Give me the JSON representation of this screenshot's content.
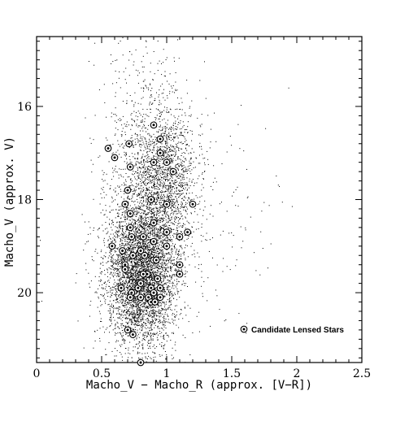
{
  "chart_data": {
    "type": "scatter",
    "xlabel": "Macho_V − Macho_R (approx. [V−R])",
    "ylabel": "Macho_V (approx. V)",
    "xlim": [
      0,
      2.5
    ],
    "ylim": [
      21.5,
      14.5
    ],
    "y_axis_inverted": true,
    "x_ticks": [
      0,
      0.5,
      1,
      1.5,
      2,
      2.5
    ],
    "x_tick_labels": [
      "0",
      "0.5",
      "1",
      "1.5",
      "2",
      "2.5"
    ],
    "y_ticks": [
      16,
      18,
      20
    ],
    "y_tick_labels": [
      "16",
      "18",
      "20"
    ],
    "grid": false,
    "legend": {
      "placement": "bottom-right",
      "entries": [
        {
          "label": "Candidate Lensed Stars",
          "marker": "circled-dot"
        }
      ]
    },
    "series": [
      {
        "name": "Candidate Lensed Stars",
        "color": "#000000",
        "x": [
          0.9,
          0.95,
          0.55,
          0.71,
          0.6,
          0.72,
          0.95,
          0.9,
          0.7,
          1.0,
          1.05,
          0.68,
          0.72,
          0.88,
          0.72,
          0.9,
          1.0,
          1.0,
          1.1,
          1.2,
          0.73,
          1.16,
          0.58,
          1.1,
          0.66,
          0.8,
          0.82,
          0.9,
          0.74,
          1.0,
          0.9,
          0.83,
          0.68,
          0.92,
          1.1,
          0.68,
          0.85,
          0.93,
          0.78,
          0.8,
          0.95,
          0.73,
          0.82,
          0.88,
          0.86,
          0.9,
          0.88,
          0.8,
          0.65,
          0.72,
          0.95,
          0.91,
          0.7,
          0.74,
          0.8
        ],
        "y": [
          16.4,
          16.7,
          16.9,
          16.8,
          17.1,
          17.3,
          17.0,
          17.2,
          17.8,
          17.2,
          17.4,
          18.1,
          18.3,
          18.0,
          18.6,
          18.5,
          18.1,
          18.7,
          18.8,
          18.1,
          18.8,
          18.7,
          19.0,
          19.4,
          19.1,
          19.1,
          18.8,
          18.9,
          19.2,
          19.0,
          19.3,
          19.2,
          19.4,
          19.3,
          19.6,
          19.5,
          19.6,
          19.7,
          19.9,
          19.8,
          19.9,
          20.0,
          19.6,
          19.9,
          20.1,
          20.0,
          20.2,
          20.1,
          19.9,
          20.1,
          20.1,
          20.2,
          20.8,
          20.9,
          21.5
        ]
      }
    ],
    "field_population": {
      "description": "dense cloud of field stars",
      "color": "#000000",
      "concentration": [
        {
          "x_center": 0.8,
          "y_center": 19.6,
          "x_sigma": 0.13,
          "y_sigma": 0.75,
          "share": 0.55
        },
        {
          "x_center": 0.98,
          "y_center": 17.6,
          "x_sigma": 0.12,
          "y_sigma": 0.85,
          "share": 0.25
        },
        {
          "x_center": 0.78,
          "y_center": 18.2,
          "x_sigma": 0.16,
          "y_sigma": 1.8,
          "share": 0.15
        },
        {
          "x_center": 1.1,
          "y_center": 18.5,
          "x_sigma": 0.35,
          "y_sigma": 1.4,
          "share": 0.05
        }
      ]
    }
  }
}
